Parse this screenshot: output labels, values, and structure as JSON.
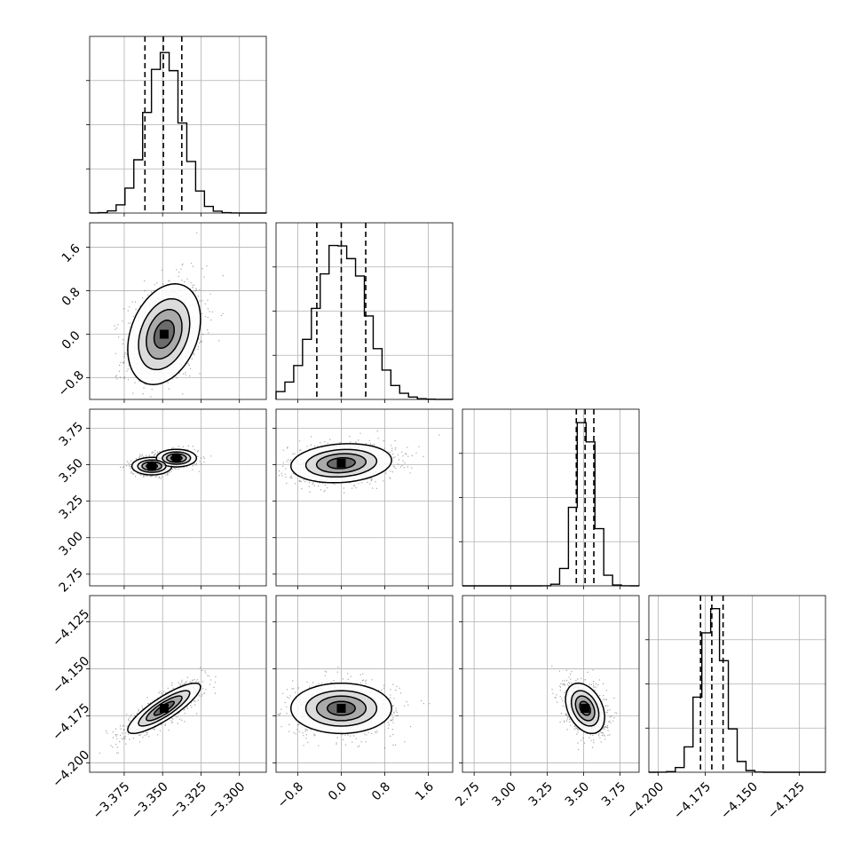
{
  "chart_data": {
    "type": "corner",
    "grid": true,
    "colors": {
      "hist": "#000000",
      "contour": "#000000",
      "scatter": "#000000",
      "grid": "#b0b0b0"
    },
    "parameters": [
      {
        "mean": -3.349,
        "sd": 0.0115,
        "range": [
          -3.3975,
          -3.2825
        ],
        "ticks": [
          -3.375,
          -3.35,
          -3.325,
          -3.3
        ],
        "tick_labels": [
          "−3.375",
          "−3.350",
          "−3.325",
          "−3.300"
        ],
        "quantiles": [
          -3.3615,
          -3.3495,
          -3.3375
        ]
      },
      {
        "mean": 0.0,
        "sd": 0.45,
        "range": [
          -1.2,
          2.05
        ],
        "ticks": [
          -0.8,
          0.0,
          0.8,
          1.6
        ],
        "tick_labels": [
          "−0.8",
          "0.0",
          "0.8",
          "1.6"
        ],
        "quantiles": [
          -0.45,
          0.0,
          0.45
        ]
      },
      {
        "mean": 3.51,
        "sd": 0.065,
        "range": [
          2.67,
          3.88
        ],
        "ticks": [
          2.75,
          3.0,
          3.25,
          3.5,
          3.75
        ],
        "tick_labels": [
          "2.75",
          "3.00",
          "3.25",
          "3.50",
          "3.75"
        ],
        "quantiles": [
          3.45,
          3.51,
          3.57
        ]
      },
      {
        "mean": -4.171,
        "sd": 0.0065,
        "range": [
          -4.205,
          -4.111
        ],
        "ticks": [
          -4.2,
          -4.175,
          -4.15,
          -4.125
        ],
        "tick_labels": [
          "−4.200",
          "−4.175",
          "−4.150",
          "−4.125"
        ],
        "quantiles": [
          -4.1775,
          -4.1715,
          -4.1655
        ]
      }
    ],
    "pairs": [
      {
        "row": 1,
        "col": 0,
        "correlation": 0.3
      },
      {
        "row": 2,
        "col": 0,
        "correlation": 0.0,
        "bimodal": [
          {
            "x": -3.357,
            "y": 3.49
          },
          {
            "x": -3.341,
            "y": 3.545
          }
        ]
      },
      {
        "row": 2,
        "col": 1,
        "correlation": 0.15
      },
      {
        "row": 3,
        "col": 0,
        "correlation": 0.85
      },
      {
        "row": 3,
        "col": 1,
        "correlation": 0.0
      },
      {
        "row": 3,
        "col": 2,
        "correlation": -0.35
      }
    ]
  }
}
